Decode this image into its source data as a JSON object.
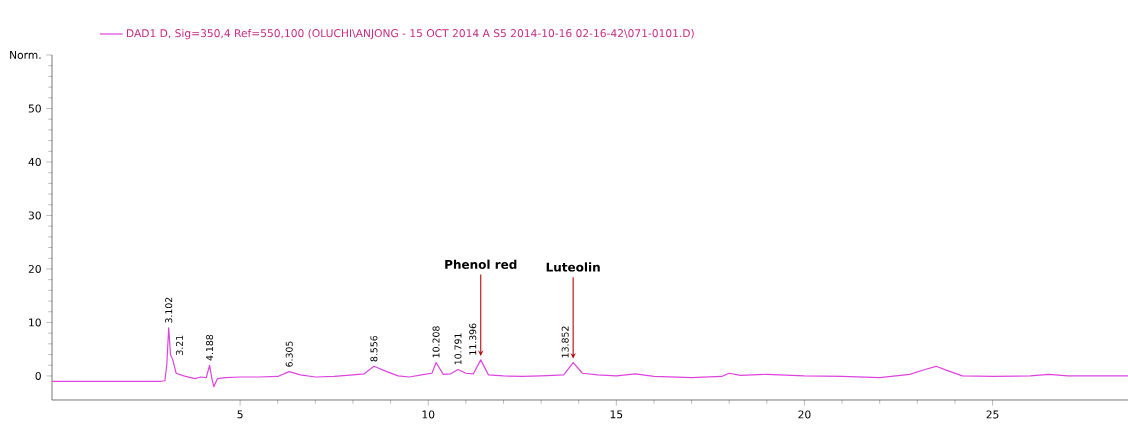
{
  "chart_data": {
    "type": "line",
    "xlim": [
      0,
      28.6
    ],
    "ylim": [
      -4.5,
      60
    ],
    "xticks": [
      5,
      10,
      15,
      20,
      25
    ],
    "yticks": [
      0,
      10,
      20,
      30,
      40,
      50,
      {
        "value": 60,
        "label": "Norm."
      }
    ],
    "legend": "top left",
    "grid": false,
    "marker": "none",
    "line_style": "solid",
    "series": [
      {
        "name": "DAD1 D, Sig=350,4 Ref=550,100 (OLUCHI\\ANJONG - 15 OCT 2014  A S5 2014-10-16 02-16-42\\071-0101.D)",
        "color": "#dd44dd",
        "x": [
          0,
          2.9,
          3.0,
          3.05,
          3.102,
          3.15,
          3.21,
          3.3,
          3.5,
          3.8,
          3.95,
          4.1,
          4.188,
          4.25,
          4.3,
          4.4,
          4.6,
          5,
          5.5,
          6.0,
          6.305,
          6.6,
          7.0,
          7.5,
          8.0,
          8.3,
          8.556,
          8.9,
          9.2,
          9.5,
          9.9,
          10.1,
          10.208,
          10.4,
          10.6,
          10.791,
          11.0,
          11.2,
          11.396,
          11.6,
          12,
          12.5,
          13,
          13.6,
          13.852,
          14.1,
          14.5,
          15,
          15.5,
          16,
          17,
          17.8,
          18.0,
          18.3,
          19,
          20,
          21,
          22,
          22.8,
          23.2,
          23.5,
          23.8,
          24.2,
          25,
          26,
          26.5,
          27,
          28,
          28.6
        ],
        "values": [
          -1,
          -1,
          -0.9,
          2,
          9,
          4,
          3,
          0.5,
          0,
          -0.5,
          -0.2,
          -0.3,
          2,
          -0.5,
          -2,
          -0.5,
          -0.3,
          -0.2,
          -0.2,
          -0.1,
          0.8,
          0.2,
          -0.2,
          -0.1,
          0.2,
          0.4,
          1.8,
          0.8,
          0,
          -0.2,
          0.3,
          0.5,
          2.5,
          0.3,
          0.4,
          1.2,
          0.5,
          0.4,
          3,
          0.2,
          0,
          -0.1,
          0,
          0.2,
          2.5,
          0.5,
          0.2,
          0,
          0.4,
          -0.1,
          -0.3,
          -0.1,
          0.5,
          0.1,
          0.3,
          0,
          -0.1,
          -0.3,
          0.3,
          1.2,
          1.8,
          1.0,
          0,
          -0.1,
          0,
          0.3,
          0,
          0,
          0
        ]
      }
    ],
    "annotations": [
      {
        "text": "3.102",
        "x": 3.102,
        "y": 9
      },
      {
        "text": "3.21",
        "x": 3.21,
        "y": 3
      },
      {
        "text": "4.188",
        "x": 4.188,
        "y": 2
      },
      {
        "text": "6.305",
        "x": 6.305,
        "y": 0.8
      },
      {
        "text": "8.556",
        "x": 8.556,
        "y": 1.8
      },
      {
        "text": "10.208",
        "x": 10.208,
        "y": 2.5
      },
      {
        "text": "10.791",
        "x": 10.791,
        "y": 1.2
      },
      {
        "text": "11.396",
        "x": 11.396,
        "y": 3
      },
      {
        "text": "13.852",
        "x": 13.852,
        "y": 2.5
      },
      {
        "text": "Phenol red",
        "x": 11.396,
        "y": 3
      },
      {
        "text": "Luteolin",
        "x": 13.852,
        "y": 2.5
      }
    ]
  }
}
